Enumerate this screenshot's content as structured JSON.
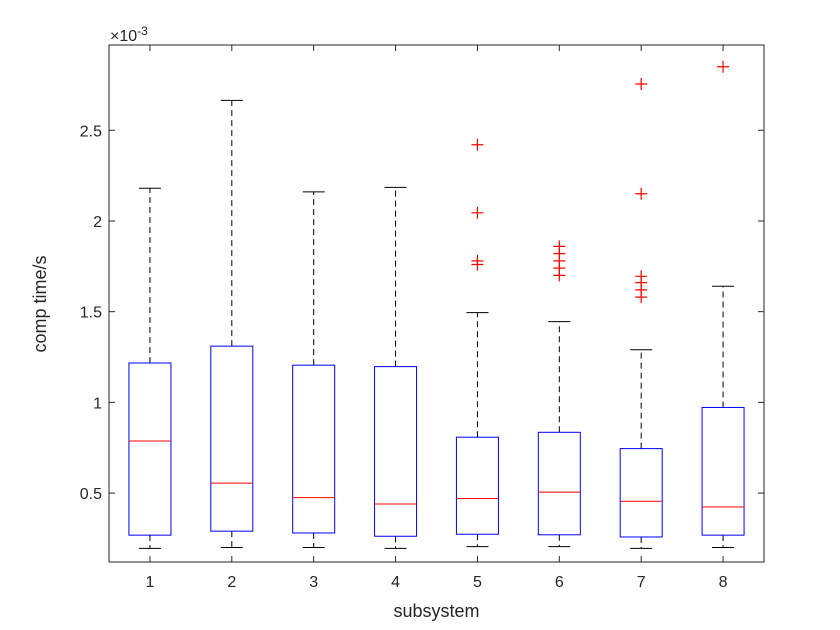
{
  "chart_data": {
    "type": "boxplot",
    "xlabel": "subsystem",
    "ylabel": "comp time/s",
    "y_exponent_label": "×10",
    "y_exponent_power": "-3",
    "ylim": [
      0.00012,
      0.00297
    ],
    "yticks": [
      0.0005,
      0.001,
      0.0015,
      0.002,
      0.0025
    ],
    "ytick_labels": [
      "0.5",
      "1",
      "1.5",
      "2",
      "2.5"
    ],
    "categories": [
      "1",
      "2",
      "3",
      "4",
      "5",
      "6",
      "7",
      "8"
    ],
    "boxes": [
      {
        "name": "1",
        "min": 0.000195,
        "q1": 0.000268,
        "median": 0.000787,
        "q3": 0.001217,
        "max": 0.00218,
        "outliers": []
      },
      {
        "name": "2",
        "min": 0.0002,
        "q1": 0.00029,
        "median": 0.000555,
        "q3": 0.00131,
        "max": 0.002665,
        "outliers": []
      },
      {
        "name": "3",
        "min": 0.0002,
        "q1": 0.00028,
        "median": 0.000475,
        "q3": 0.001205,
        "max": 0.00216,
        "outliers": []
      },
      {
        "name": "4",
        "min": 0.000195,
        "q1": 0.000262,
        "median": 0.00044,
        "q3": 0.001197,
        "max": 0.002185,
        "outliers": []
      },
      {
        "name": "5",
        "min": 0.000205,
        "q1": 0.000273,
        "median": 0.00047,
        "q3": 0.000808,
        "max": 0.001495,
        "outliers": [
          0.00242,
          0.002045,
          0.00178,
          0.00176
        ]
      },
      {
        "name": "6",
        "min": 0.000205,
        "q1": 0.00027,
        "median": 0.000505,
        "q3": 0.000835,
        "max": 0.001445,
        "outliers": [
          0.00186,
          0.00182,
          0.00178,
          0.00174,
          0.0017
        ]
      },
      {
        "name": "7",
        "min": 0.000195,
        "q1": 0.000258,
        "median": 0.000455,
        "q3": 0.000745,
        "max": 0.00129,
        "outliers": [
          0.002755,
          0.00215,
          0.001695,
          0.00166,
          0.00162,
          0.00158
        ]
      },
      {
        "name": "8",
        "min": 0.0002,
        "q1": 0.000268,
        "median": 0.000423,
        "q3": 0.000972,
        "max": 0.00164,
        "outliers": [
          0.00285
        ]
      }
    ],
    "colors": {
      "box": "#0000ff",
      "median": "#ff0000",
      "outlier": "#ff0000",
      "whisker": "#000000",
      "axis": "#262626"
    }
  }
}
